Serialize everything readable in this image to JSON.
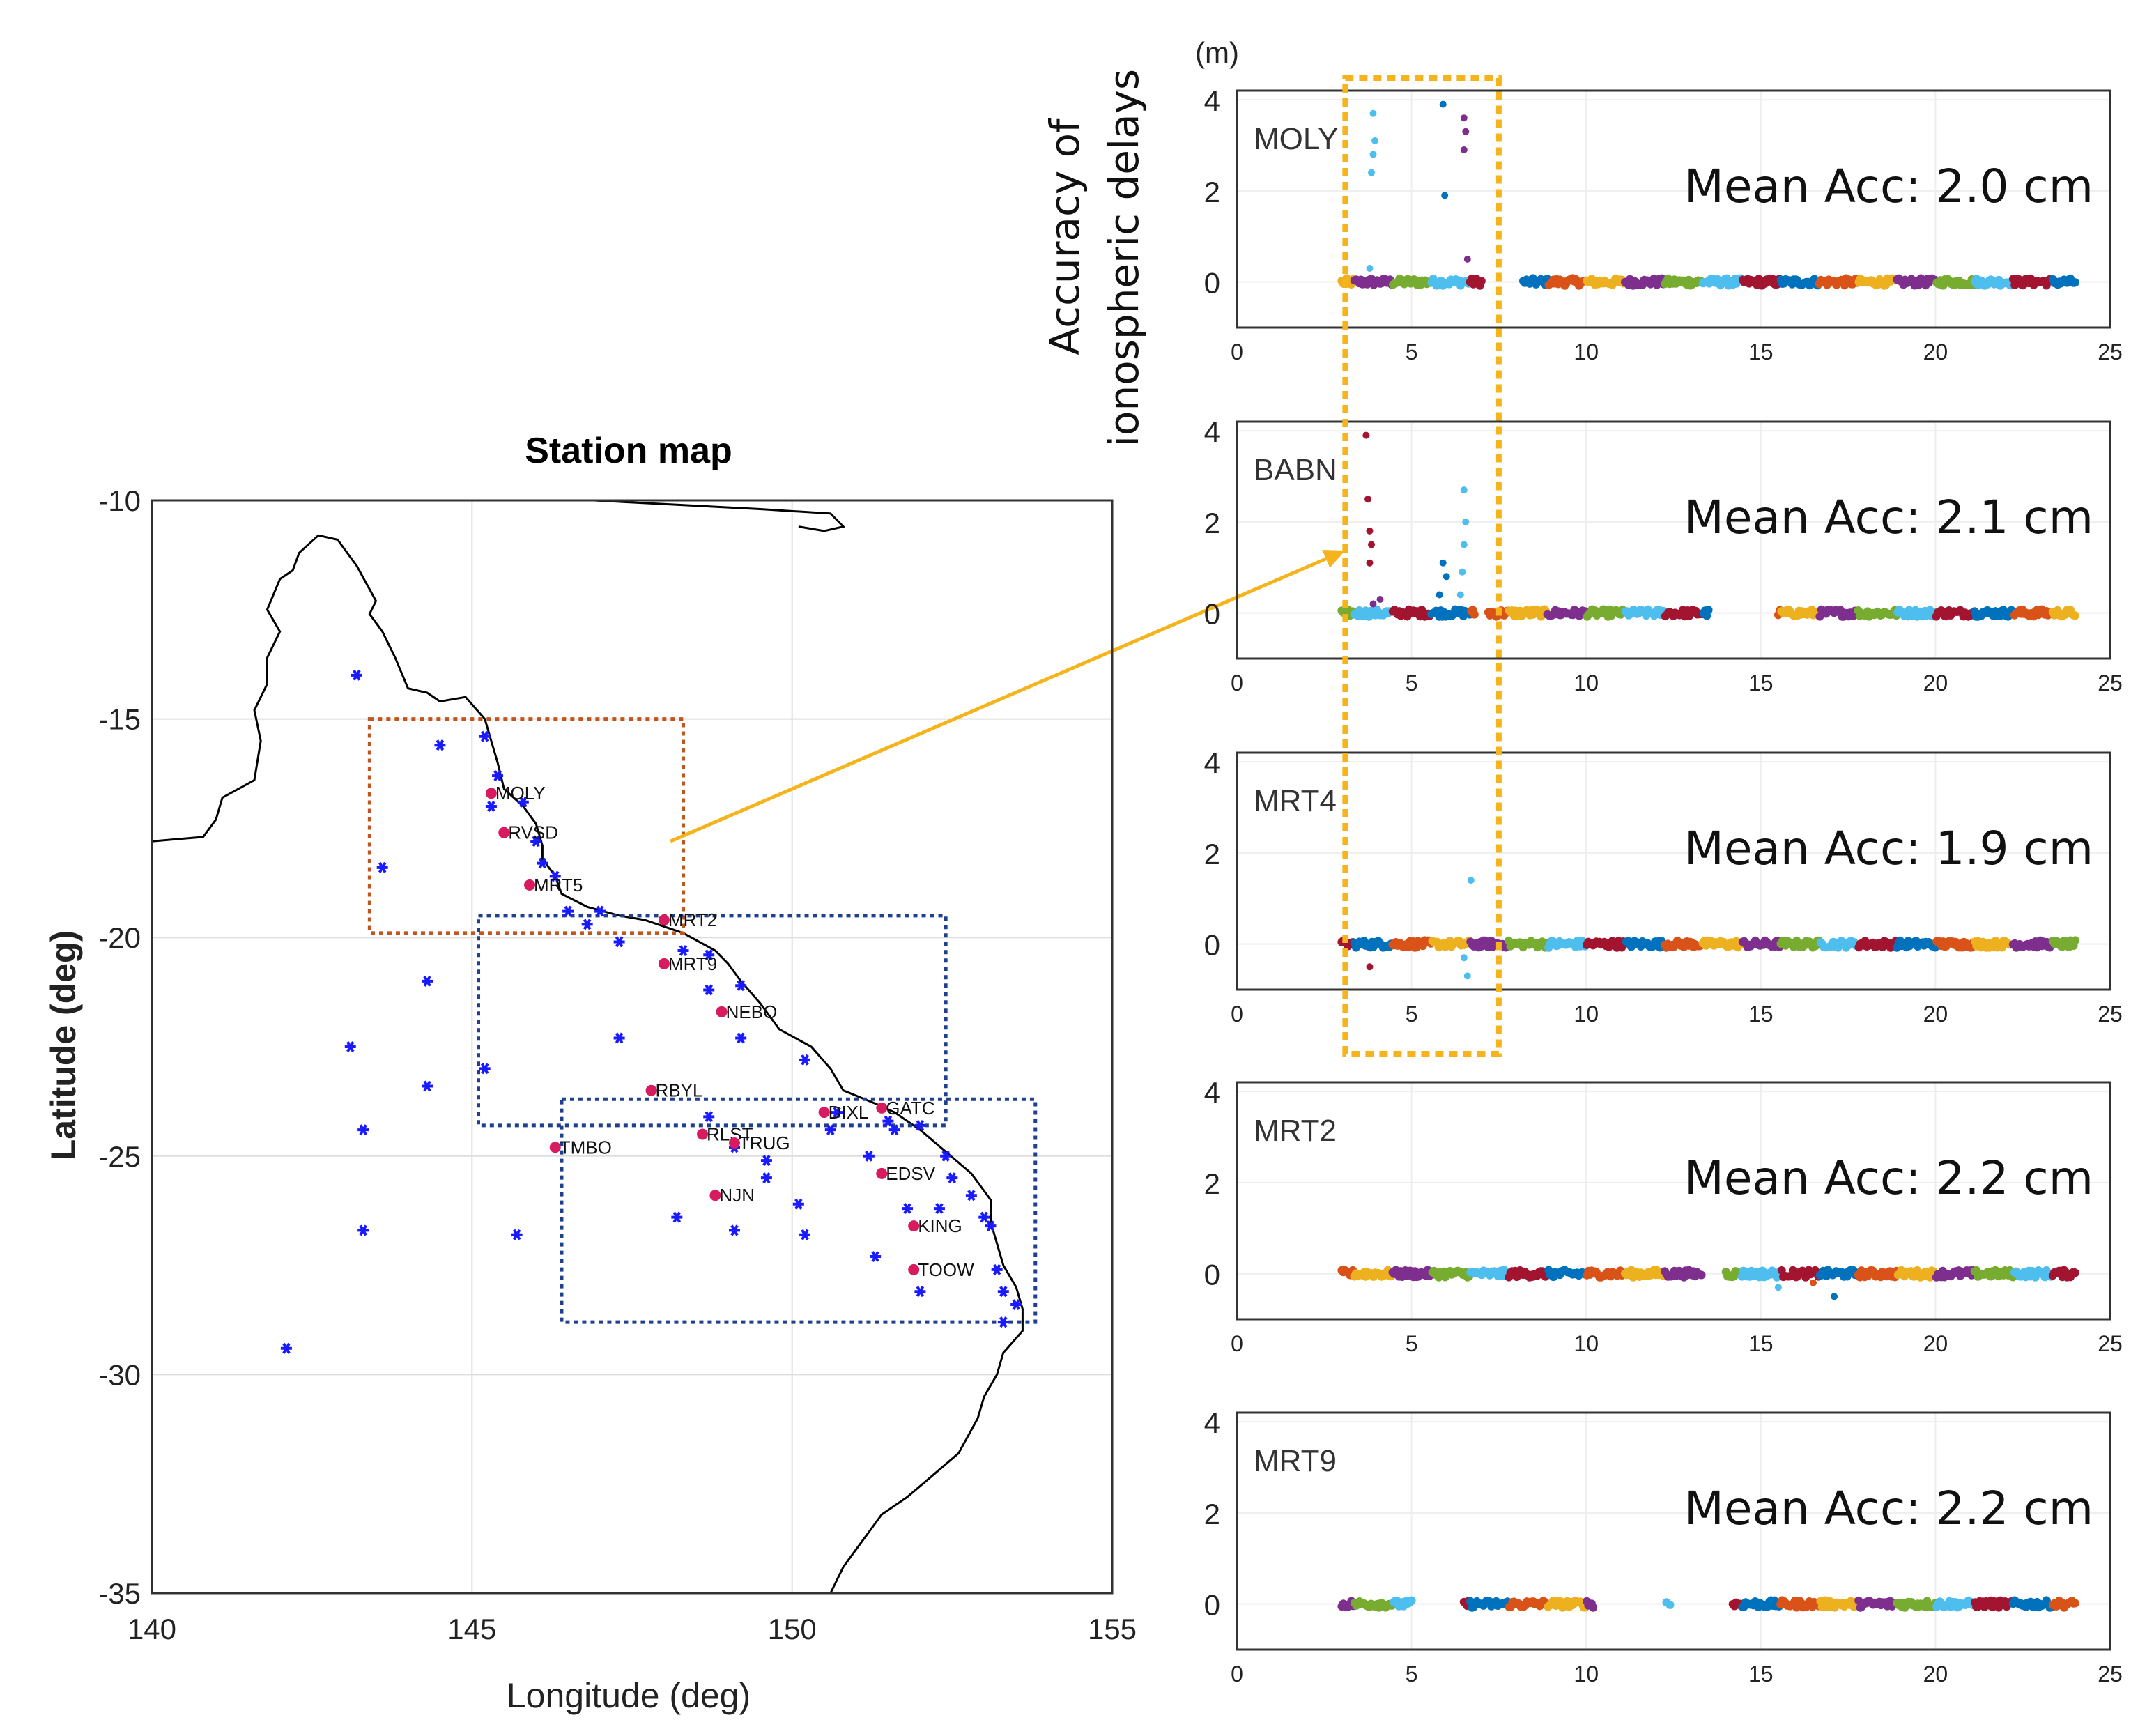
{
  "colors": {
    "coast": "#000000",
    "station": "#1a1aff",
    "selected_station": "#d81b60",
    "orange_box": "#c0561e",
    "blue_box": "#1f3f8f",
    "highlight": "#f5b41c",
    "grid": "#dddddd",
    "series": [
      "#0072bd",
      "#d95319",
      "#edb120",
      "#7e2f8e",
      "#77ac30",
      "#4dbeee",
      "#a2142f"
    ]
  },
  "chart_data": [
    {
      "type": "scatter",
      "title": "Station map",
      "xlabel": "Longitude (deg)",
      "ylabel": "Latitude (deg)",
      "xlim": [
        140,
        155
      ],
      "ylim": [
        -35,
        -10
      ],
      "xticks": [
        "140",
        "145",
        "150",
        "155"
      ],
      "yticks": [
        "-10",
        "-15",
        "-20",
        "-25",
        "-30",
        "-35"
      ],
      "grid": true,
      "coastline": [
        [
          140,
          -17.8
        ],
        [
          140.8,
          -17.7
        ],
        [
          141,
          -17.3
        ],
        [
          141.1,
          -16.8
        ],
        [
          141.6,
          -16.4
        ],
        [
          141.7,
          -15.5
        ],
        [
          141.6,
          -14.8
        ],
        [
          141.8,
          -14.2
        ],
        [
          141.8,
          -13.6
        ],
        [
          142,
          -13
        ],
        [
          141.8,
          -12.5
        ],
        [
          142,
          -11.8
        ],
        [
          142.2,
          -11.6
        ],
        [
          142.3,
          -11.2
        ],
        [
          142.6,
          -10.8
        ],
        [
          142.9,
          -10.9
        ],
        [
          143.2,
          -11.5
        ],
        [
          143.5,
          -12.3
        ],
        [
          143.4,
          -12.6
        ],
        [
          143.6,
          -13
        ],
        [
          143.8,
          -13.6
        ],
        [
          144,
          -14.3
        ],
        [
          144.3,
          -14.4
        ],
        [
          144.5,
          -14.6
        ],
        [
          144.9,
          -14.5
        ],
        [
          145.2,
          -15
        ],
        [
          145.3,
          -15.5
        ],
        [
          145.4,
          -16
        ],
        [
          145.5,
          -16.6
        ],
        [
          145.8,
          -17
        ],
        [
          146,
          -17.4
        ],
        [
          146.1,
          -17.9
        ],
        [
          146.1,
          -18.2
        ],
        [
          146.3,
          -18.6
        ],
        [
          146.4,
          -19
        ],
        [
          146.8,
          -19.3
        ],
        [
          147.3,
          -19.5
        ],
        [
          147.7,
          -19.6
        ],
        [
          148.3,
          -19.9
        ],
        [
          148.8,
          -20.3
        ],
        [
          149,
          -20.6
        ],
        [
          149.2,
          -21
        ],
        [
          149.5,
          -21.5
        ],
        [
          149.8,
          -22.1
        ],
        [
          150.3,
          -22.5
        ],
        [
          150.6,
          -23
        ],
        [
          150.8,
          -23.5
        ],
        [
          151.3,
          -23.8
        ],
        [
          151.6,
          -24
        ],
        [
          152,
          -24.4
        ],
        [
          152.4,
          -24.9
        ],
        [
          152.8,
          -25.4
        ],
        [
          153.1,
          -26
        ],
        [
          153.1,
          -26.5
        ],
        [
          153.2,
          -27
        ],
        [
          153.3,
          -27.5
        ],
        [
          153.5,
          -28
        ],
        [
          153.6,
          -28.5
        ],
        [
          153.6,
          -29
        ],
        [
          153.3,
          -29.5
        ],
        [
          153.2,
          -30
        ],
        [
          153,
          -30.5
        ],
        [
          152.9,
          -31
        ],
        [
          152.6,
          -31.8
        ],
        [
          152.2,
          -32.3
        ],
        [
          151.8,
          -32.8
        ],
        [
          151.4,
          -33.2
        ],
        [
          151.2,
          -33.6
        ],
        [
          150.9,
          -34.2
        ],
        [
          150.8,
          -34.4
        ],
        [
          150.6,
          -35
        ]
      ],
      "coastline_top": [
        [
          146.9,
          -10
        ],
        [
          148.2,
          -10.1
        ],
        [
          149.5,
          -10.2
        ],
        [
          150.6,
          -10.3
        ],
        [
          150.8,
          -10.6
        ],
        [
          150.5,
          -10.7
        ],
        [
          150.1,
          -10.6
        ]
      ],
      "stations": [
        [
          143.2,
          -14
        ],
        [
          144.5,
          -15.6
        ],
        [
          145.2,
          -15.4
        ],
        [
          145.4,
          -16.3
        ],
        [
          145.3,
          -17
        ],
        [
          145.8,
          -16.9
        ],
        [
          146,
          -17.8
        ],
        [
          146.1,
          -18.3
        ],
        [
          146.3,
          -18.6
        ],
        [
          143.6,
          -18.4
        ],
        [
          146.5,
          -19.4
        ],
        [
          146.8,
          -19.7
        ],
        [
          147,
          -19.4
        ],
        [
          147.3,
          -20.1
        ],
        [
          148.3,
          -20.3
        ],
        [
          148.7,
          -20.4
        ],
        [
          148.7,
          -21.2
        ],
        [
          149.2,
          -21.1
        ],
        [
          149.2,
          -22.3
        ],
        [
          147.3,
          -22.3
        ],
        [
          144.3,
          -21
        ],
        [
          143.1,
          -22.5
        ],
        [
          145.2,
          -23
        ],
        [
          144.3,
          -23.4
        ],
        [
          143.3,
          -24.4
        ],
        [
          150.2,
          -22.8
        ],
        [
          150.7,
          -24
        ],
        [
          150.6,
          -24.4
        ],
        [
          151.2,
          -25
        ],
        [
          151.5,
          -24.2
        ],
        [
          151.6,
          -24.4
        ],
        [
          152,
          -24.3
        ],
        [
          152.4,
          -25
        ],
        [
          152.5,
          -25.5
        ],
        [
          152.8,
          -25.9
        ],
        [
          153,
          -26.4
        ],
        [
          153.1,
          -26.6
        ],
        [
          152.3,
          -26.2
        ],
        [
          151.8,
          -26.2
        ],
        [
          150.2,
          -26.8
        ],
        [
          150.1,
          -26.1
        ],
        [
          149.1,
          -26.7
        ],
        [
          149.6,
          -25.5
        ],
        [
          149.6,
          -25.1
        ],
        [
          149.1,
          -24.8
        ],
        [
          148.7,
          -24.1
        ],
        [
          148.2,
          -26.4
        ],
        [
          145.7,
          -26.8
        ],
        [
          143.3,
          -26.7
        ],
        [
          142.1,
          -29.4
        ],
        [
          151.3,
          -27.3
        ],
        [
          152,
          -28.1
        ],
        [
          153.2,
          -27.6
        ],
        [
          153.3,
          -28.1
        ],
        [
          153.5,
          -28.4
        ],
        [
          153.3,
          -28.8
        ]
      ],
      "selected": [
        {
          "name": "MOLY",
          "lon": 145.3,
          "lat": -16.7
        },
        {
          "name": "RVSD",
          "lon": 145.5,
          "lat": -17.6
        },
        {
          "name": "MRT5",
          "lon": 145.9,
          "lat": -18.8
        },
        {
          "name": "MRT2",
          "lon": 148,
          "lat": -19.6
        },
        {
          "name": "MRT9",
          "lon": 148,
          "lat": -20.6
        },
        {
          "name": "NEBO",
          "lon": 148.9,
          "lat": -21.7
        },
        {
          "name": "RBYL",
          "lon": 147.8,
          "lat": -23.5
        },
        {
          "name": "DIXL",
          "lon": 150.5,
          "lat": -24
        },
        {
          "name": "GATC",
          "lon": 151.4,
          "lat": -23.9
        },
        {
          "name": "RLST",
          "lon": 148.6,
          "lat": -24.5
        },
        {
          "name": "TRUG",
          "lon": 149.1,
          "lat": -24.7
        },
        {
          "name": "TMBO",
          "lon": 146.3,
          "lat": -24.8
        },
        {
          "name": "EDSV",
          "lon": 151.4,
          "lat": -25.4
        },
        {
          "name": "NJN",
          "lon": 148.8,
          "lat": -25.9
        },
        {
          "name": "KING",
          "lon": 151.9,
          "lat": -26.6
        },
        {
          "name": "TOOW",
          "lon": 151.9,
          "lat": -27.6
        }
      ],
      "boxes": [
        {
          "color": "orange",
          "lon": [
            143.4,
            148.3
          ],
          "lat": [
            -15,
            -19.9
          ]
        },
        {
          "color": "blue",
          "lon": [
            145.1,
            152.4
          ],
          "lat": [
            -19.5,
            -24.3
          ]
        },
        {
          "color": "blue",
          "lon": [
            146.4,
            153.8
          ],
          "lat": [
            -23.7,
            -28.8
          ]
        }
      ]
    },
    {
      "type": "scatter",
      "y_unit": "(m)",
      "ylabel_line1": "Accuracy of",
      "ylabel_line2": "ionospheric delays",
      "xlim": [
        0,
        25
      ],
      "ylim": [
        -1,
        4.2
      ],
      "xticks": [
        "0",
        "5",
        "10",
        "15",
        "20",
        "25"
      ],
      "yticks": [
        "4",
        "2",
        "0"
      ],
      "panels": [
        {
          "station": "MOLY",
          "mean_acc": "Mean Acc: 2.0 cm",
          "segments": [
            [
              3,
              7
            ],
            [
              8.2,
              24
            ]
          ],
          "outliers": [
            [
              3.9,
              3.7,
              5
            ],
            [
              3.95,
              3.1,
              5
            ],
            [
              3.85,
              2.4,
              5
            ],
            [
              3.9,
              2.8,
              5
            ],
            [
              3.8,
              0.3,
              5
            ],
            [
              5.9,
              3.9,
              0
            ],
            [
              5.95,
              1.9,
              0
            ],
            [
              6.5,
              3.6,
              3
            ],
            [
              6.55,
              3.3,
              3
            ],
            [
              6.5,
              2.9,
              3
            ],
            [
              6.6,
              0.5,
              3
            ]
          ]
        },
        {
          "station": "BABN",
          "mean_acc": "Mean Acc: 2.1 cm",
          "segments": [
            [
              3,
              6.8
            ],
            [
              7.2,
              13.5
            ],
            [
              15.5,
              24
            ]
          ],
          "outliers": [
            [
              3.7,
              3.9,
              6
            ],
            [
              3.75,
              2.5,
              6
            ],
            [
              3.8,
              1.8,
              6
            ],
            [
              3.85,
              1.5,
              6
            ],
            [
              3.8,
              1.1,
              6
            ],
            [
              3.9,
              0.2,
              3
            ],
            [
              4.1,
              0.3,
              3
            ],
            [
              5.9,
              1.1,
              0
            ],
            [
              6,
              0.8,
              0
            ],
            [
              5.8,
              0.4,
              0
            ],
            [
              6.5,
              2.7,
              5
            ],
            [
              6.55,
              2,
              5
            ],
            [
              6.5,
              1.5,
              5
            ],
            [
              6.45,
              0.9,
              5
            ],
            [
              6.4,
              0.4,
              5
            ]
          ]
        },
        {
          "station": "MRT4",
          "mean_acc": "Mean Acc: 1.9 cm",
          "segments": [
            [
              3,
              24
            ]
          ],
          "outliers": [
            [
              3.8,
              -0.5,
              6
            ],
            [
              6.7,
              1.4,
              5
            ],
            [
              6.6,
              -0.7,
              5
            ],
            [
              6.5,
              -0.3,
              5
            ]
          ]
        },
        {
          "station": "MRT2",
          "mean_acc": "Mean Acc: 2.2 cm",
          "segments": [
            [
              3,
              13.3
            ],
            [
              14,
              24
            ]
          ],
          "outliers": [
            [
              16.5,
              -0.2,
              1
            ],
            [
              15.5,
              -0.3,
              5
            ],
            [
              17.1,
              -0.5,
              0
            ]
          ]
        },
        {
          "station": "MRT9",
          "mean_acc": "Mean Acc: 2.2 cm",
          "segments": [
            [
              3,
              5
            ],
            [
              6.5,
              10.2
            ],
            [
              12.3,
              12.4
            ],
            [
              14.2,
              24
            ]
          ],
          "outliers": []
        }
      ],
      "highlight_box_x": [
        3.1,
        7.5
      ]
    }
  ]
}
